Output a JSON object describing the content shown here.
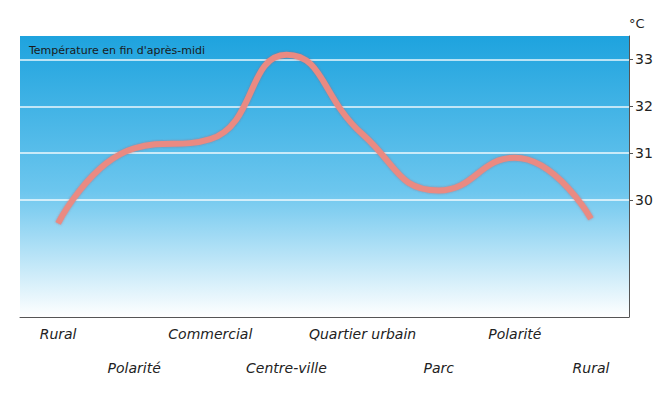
{
  "chart_data": {
    "type": "line",
    "title": "Température en fin d'après-midi",
    "y_label": "°C",
    "categories": [
      "Rural",
      "Polarité",
      "Commercial",
      "Centre-ville",
      "Quartier urbain",
      "Parc",
      "Polarité",
      "Rural"
    ],
    "values": [
      29.5,
      31.1,
      31.3,
      33.1,
      31.4,
      30.2,
      30.9,
      29.6
    ],
    "color": "#ea8a82",
    "ylim": [
      27.5,
      33.5
    ],
    "yticks": [
      30,
      31,
      32,
      33
    ],
    "grid": true
  }
}
